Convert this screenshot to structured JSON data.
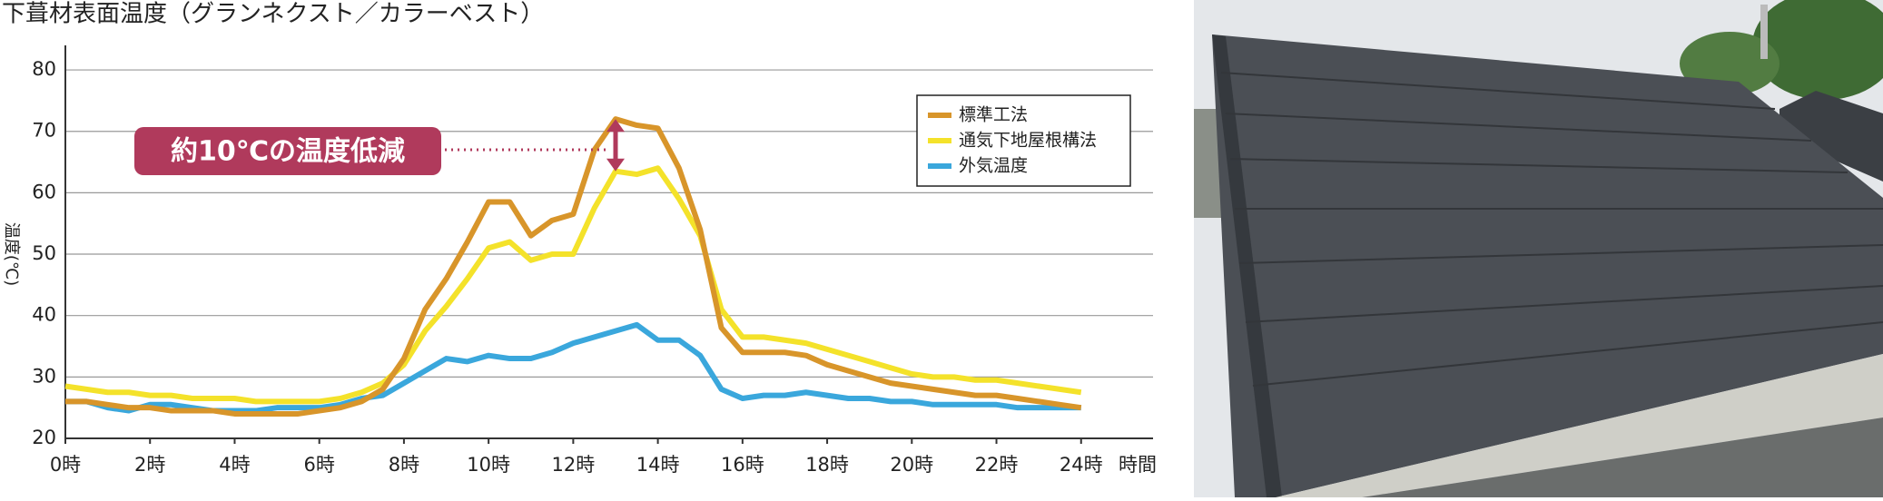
{
  "chart_data": {
    "type": "line",
    "title": "下葺材表面温度（グランネクスト／カラーベスト）",
    "y_label": "温度(℃)",
    "x_label": "時間",
    "annotation": "約10℃の温度低減",
    "x": [
      0,
      0.5,
      1,
      1.5,
      2,
      2.5,
      3,
      3.5,
      4,
      4.5,
      5,
      5.5,
      6,
      6.5,
      7,
      7.5,
      8,
      8.5,
      9,
      9.5,
      10,
      10.5,
      11,
      11.5,
      12,
      12.5,
      13,
      13.5,
      14,
      14.5,
      15,
      15.5,
      16,
      16.5,
      17,
      17.5,
      18,
      18.5,
      19,
      19.5,
      20,
      20.5,
      21,
      21.5,
      22,
      22.5,
      23,
      23.5,
      24
    ],
    "series": [
      {
        "name": "標準工法",
        "color": "#d8952a",
        "values": [
          26,
          26,
          25.5,
          25,
          25,
          24.5,
          24.5,
          24.5,
          24,
          24,
          24,
          24,
          24.5,
          25,
          26,
          28,
          33,
          41,
          46,
          52,
          58.5,
          58.5,
          53,
          55.5,
          56.5,
          67,
          72,
          71,
          70.5,
          64,
          54,
          38,
          34,
          34,
          34,
          33.5,
          32,
          31,
          30,
          29,
          28.5,
          28,
          27.5,
          27,
          27,
          26.5,
          26,
          25.5,
          25
        ]
      },
      {
        "name": "通気下地屋根構法",
        "color": "#f4e22a",
        "values": [
          28.5,
          28,
          27.5,
          27.5,
          27,
          27,
          26.5,
          26.5,
          26.5,
          26,
          26,
          26,
          26,
          26.5,
          27.5,
          29,
          32,
          37.5,
          41.5,
          46,
          51,
          52,
          49,
          50,
          50,
          57.5,
          63.5,
          63,
          64,
          59,
          53,
          41,
          36.5,
          36.5,
          36,
          35.5,
          34.5,
          33.5,
          32.5,
          31.5,
          30.5,
          30,
          30,
          29.5,
          29.5,
          29,
          28.5,
          28,
          27.5
        ]
      },
      {
        "name": "外気温度",
        "color": "#3aa7dc",
        "values": [
          26,
          26,
          25,
          24.5,
          25.5,
          25.5,
          25,
          24.5,
          24.5,
          24.5,
          25,
          25,
          25,
          25.5,
          26.5,
          27,
          29,
          31,
          33,
          32.5,
          33.5,
          33,
          33,
          34,
          35.5,
          36.5,
          37.5,
          38.5,
          36,
          36,
          33.5,
          28,
          26.5,
          27,
          27,
          27.5,
          27,
          26.5,
          26.5,
          26,
          26,
          25.5,
          25.5,
          25.5,
          25.5,
          25,
          25,
          25,
          25
        ]
      }
    ],
    "xlim": [
      0,
      25.7
    ],
    "ylim": [
      20,
      84
    ],
    "xticks": [
      {
        "value": 0,
        "label": "0時"
      },
      {
        "value": 2,
        "label": "2時"
      },
      {
        "value": 4,
        "label": "4時"
      },
      {
        "value": 6,
        "label": "6時"
      },
      {
        "value": 8,
        "label": "8時"
      },
      {
        "value": 10,
        "label": "10時"
      },
      {
        "value": 12,
        "label": "12時"
      },
      {
        "value": 14,
        "label": "14時"
      },
      {
        "value": 16,
        "label": "16時"
      },
      {
        "value": 18,
        "label": "18時"
      },
      {
        "value": 20,
        "label": "20時"
      },
      {
        "value": 22,
        "label": "22時"
      },
      {
        "value": 24,
        "label": "24時"
      }
    ],
    "yticks": [
      20,
      30,
      40,
      50,
      60,
      70,
      80
    ],
    "grid": true,
    "legend": "upper right"
  }
}
